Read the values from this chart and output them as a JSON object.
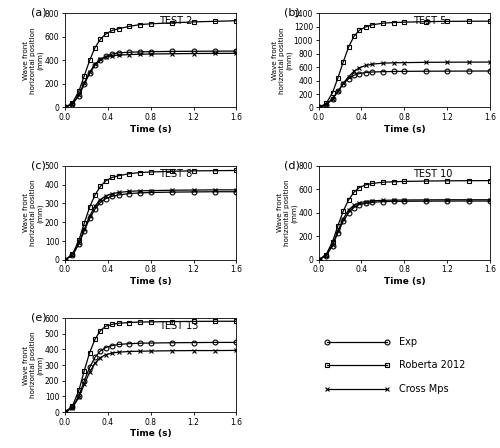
{
  "tests": [
    {
      "label": "TEST 2",
      "ylim": [
        0,
        800
      ],
      "yticks": [
        0,
        200,
        400,
        600,
        800
      ],
      "exp": [
        [
          0,
          0
        ],
        [
          0.07,
          30
        ],
        [
          0.13,
          100
        ],
        [
          0.18,
          200
        ],
        [
          0.23,
          290
        ],
        [
          0.28,
          360
        ],
        [
          0.33,
          400
        ],
        [
          0.38,
          435
        ],
        [
          0.44,
          455
        ],
        [
          0.5,
          465
        ],
        [
          0.6,
          470
        ],
        [
          0.7,
          473
        ],
        [
          0.8,
          475
        ],
        [
          1.0,
          477
        ],
        [
          1.2,
          478
        ],
        [
          1.4,
          479
        ],
        [
          1.6,
          480
        ]
      ],
      "roberta": [
        [
          0,
          0
        ],
        [
          0.07,
          40
        ],
        [
          0.13,
          140
        ],
        [
          0.18,
          270
        ],
        [
          0.23,
          400
        ],
        [
          0.28,
          510
        ],
        [
          0.33,
          580
        ],
        [
          0.38,
          625
        ],
        [
          0.44,
          655
        ],
        [
          0.5,
          670
        ],
        [
          0.6,
          690
        ],
        [
          0.7,
          705
        ],
        [
          0.8,
          712
        ],
        [
          1.0,
          720
        ],
        [
          1.2,
          728
        ],
        [
          1.4,
          733
        ],
        [
          1.6,
          738
        ]
      ],
      "cross": [
        [
          0,
          0
        ],
        [
          0.07,
          30
        ],
        [
          0.13,
          110
        ],
        [
          0.18,
          210
        ],
        [
          0.23,
          300
        ],
        [
          0.28,
          370
        ],
        [
          0.33,
          410
        ],
        [
          0.38,
          430
        ],
        [
          0.44,
          440
        ],
        [
          0.5,
          445
        ],
        [
          0.6,
          450
        ],
        [
          0.7,
          453
        ],
        [
          0.8,
          455
        ],
        [
          1.0,
          457
        ],
        [
          1.2,
          459
        ],
        [
          1.4,
          460
        ],
        [
          1.6,
          461
        ]
      ]
    },
    {
      "label": "TEST 5",
      "ylim": [
        0,
        1400
      ],
      "yticks": [
        0,
        200,
        400,
        600,
        800,
        1000,
        1200,
        1400
      ],
      "exp": [
        [
          0,
          0
        ],
        [
          0.07,
          40
        ],
        [
          0.13,
          130
        ],
        [
          0.18,
          240
        ],
        [
          0.23,
          350
        ],
        [
          0.28,
          430
        ],
        [
          0.33,
          480
        ],
        [
          0.38,
          505
        ],
        [
          0.44,
          520
        ],
        [
          0.5,
          528
        ],
        [
          0.6,
          533
        ],
        [
          0.7,
          536
        ],
        [
          0.8,
          538
        ],
        [
          1.0,
          540
        ],
        [
          1.2,
          541
        ],
        [
          1.4,
          542
        ],
        [
          1.6,
          543
        ]
      ],
      "roberta": [
        [
          0,
          0
        ],
        [
          0.07,
          60
        ],
        [
          0.13,
          220
        ],
        [
          0.18,
          440
        ],
        [
          0.23,
          680
        ],
        [
          0.28,
          900
        ],
        [
          0.33,
          1060
        ],
        [
          0.38,
          1150
        ],
        [
          0.44,
          1200
        ],
        [
          0.5,
          1230
        ],
        [
          0.6,
          1255
        ],
        [
          0.7,
          1265
        ],
        [
          0.8,
          1270
        ],
        [
          1.0,
          1278
        ],
        [
          1.2,
          1282
        ],
        [
          1.4,
          1284
        ],
        [
          1.6,
          1285
        ]
      ],
      "cross": [
        [
          0,
          0
        ],
        [
          0.07,
          40
        ],
        [
          0.13,
          130
        ],
        [
          0.18,
          240
        ],
        [
          0.23,
          360
        ],
        [
          0.28,
          460
        ],
        [
          0.33,
          540
        ],
        [
          0.38,
          590
        ],
        [
          0.44,
          625
        ],
        [
          0.5,
          645
        ],
        [
          0.6,
          660
        ],
        [
          0.7,
          665
        ],
        [
          0.8,
          668
        ],
        [
          1.0,
          672
        ],
        [
          1.2,
          674
        ],
        [
          1.4,
          675
        ],
        [
          1.6,
          676
        ]
      ]
    },
    {
      "label": "TEST 8",
      "ylim": [
        0,
        500
      ],
      "yticks": [
        0,
        100,
        200,
        300,
        400,
        500
      ],
      "exp": [
        [
          0,
          0
        ],
        [
          0.07,
          25
        ],
        [
          0.13,
          85
        ],
        [
          0.18,
          155
        ],
        [
          0.23,
          220
        ],
        [
          0.28,
          270
        ],
        [
          0.33,
          305
        ],
        [
          0.38,
          325
        ],
        [
          0.44,
          338
        ],
        [
          0.5,
          345
        ],
        [
          0.6,
          352
        ],
        [
          0.7,
          356
        ],
        [
          0.8,
          358
        ],
        [
          1.0,
          360
        ],
        [
          1.2,
          361
        ],
        [
          1.4,
          362
        ],
        [
          1.6,
          362
        ]
      ],
      "roberta": [
        [
          0,
          0
        ],
        [
          0.07,
          30
        ],
        [
          0.13,
          105
        ],
        [
          0.18,
          195
        ],
        [
          0.23,
          280
        ],
        [
          0.28,
          345
        ],
        [
          0.33,
          390
        ],
        [
          0.38,
          420
        ],
        [
          0.44,
          438
        ],
        [
          0.5,
          447
        ],
        [
          0.6,
          458
        ],
        [
          0.7,
          464
        ],
        [
          0.8,
          467
        ],
        [
          1.0,
          471
        ],
        [
          1.2,
          473
        ],
        [
          1.4,
          474
        ],
        [
          1.6,
          475
        ]
      ],
      "cross": [
        [
          0,
          0
        ],
        [
          0.07,
          25
        ],
        [
          0.13,
          88
        ],
        [
          0.18,
          163
        ],
        [
          0.23,
          232
        ],
        [
          0.28,
          286
        ],
        [
          0.33,
          320
        ],
        [
          0.38,
          340
        ],
        [
          0.44,
          352
        ],
        [
          0.5,
          358
        ],
        [
          0.6,
          364
        ],
        [
          0.7,
          367
        ],
        [
          0.8,
          368
        ],
        [
          1.0,
          370
        ],
        [
          1.2,
          371
        ],
        [
          1.4,
          372
        ],
        [
          1.6,
          372
        ]
      ]
    },
    {
      "label": "TEST 10",
      "ylim": [
        0,
        800
      ],
      "yticks": [
        0,
        200,
        400,
        600,
        800
      ],
      "exp": [
        [
          0,
          0
        ],
        [
          0.07,
          35
        ],
        [
          0.13,
          120
        ],
        [
          0.18,
          230
        ],
        [
          0.23,
          330
        ],
        [
          0.28,
          400
        ],
        [
          0.33,
          445
        ],
        [
          0.38,
          470
        ],
        [
          0.44,
          483
        ],
        [
          0.5,
          490
        ],
        [
          0.6,
          495
        ],
        [
          0.7,
          497
        ],
        [
          0.8,
          498
        ],
        [
          1.0,
          499
        ],
        [
          1.2,
          500
        ],
        [
          1.4,
          500
        ],
        [
          1.6,
          500
        ]
      ],
      "roberta": [
        [
          0,
          0
        ],
        [
          0.07,
          45
        ],
        [
          0.13,
          155
        ],
        [
          0.18,
          290
        ],
        [
          0.23,
          415
        ],
        [
          0.28,
          510
        ],
        [
          0.33,
          575
        ],
        [
          0.38,
          615
        ],
        [
          0.44,
          638
        ],
        [
          0.5,
          650
        ],
        [
          0.6,
          660
        ],
        [
          0.7,
          664
        ],
        [
          0.8,
          667
        ],
        [
          1.0,
          670
        ],
        [
          1.2,
          672
        ],
        [
          1.4,
          673
        ],
        [
          1.6,
          674
        ]
      ],
      "cross": [
        [
          0,
          0
        ],
        [
          0.07,
          38
        ],
        [
          0.13,
          130
        ],
        [
          0.18,
          245
        ],
        [
          0.23,
          350
        ],
        [
          0.28,
          425
        ],
        [
          0.33,
          465
        ],
        [
          0.38,
          486
        ],
        [
          0.44,
          496
        ],
        [
          0.5,
          502
        ],
        [
          0.6,
          506
        ],
        [
          0.7,
          508
        ],
        [
          0.8,
          509
        ],
        [
          1.0,
          510
        ],
        [
          1.2,
          511
        ],
        [
          1.4,
          511
        ],
        [
          1.6,
          511
        ]
      ]
    },
    {
      "label": "TEST 13",
      "ylim": [
        0,
        600
      ],
      "yticks": [
        0,
        100,
        200,
        300,
        400,
        500,
        600
      ],
      "exp": [
        [
          0,
          0
        ],
        [
          0.07,
          30
        ],
        [
          0.13,
          105
        ],
        [
          0.18,
          200
        ],
        [
          0.23,
          285
        ],
        [
          0.28,
          350
        ],
        [
          0.33,
          390
        ],
        [
          0.38,
          412
        ],
        [
          0.44,
          425
        ],
        [
          0.5,
          432
        ],
        [
          0.6,
          437
        ],
        [
          0.7,
          440
        ],
        [
          0.8,
          441
        ],
        [
          1.0,
          443
        ],
        [
          1.2,
          444
        ],
        [
          1.4,
          445
        ],
        [
          1.6,
          445
        ]
      ],
      "roberta": [
        [
          0,
          0
        ],
        [
          0.07,
          40
        ],
        [
          0.13,
          140
        ],
        [
          0.18,
          265
        ],
        [
          0.23,
          380
        ],
        [
          0.28,
          465
        ],
        [
          0.33,
          520
        ],
        [
          0.38,
          548
        ],
        [
          0.44,
          560
        ],
        [
          0.5,
          567
        ],
        [
          0.6,
          572
        ],
        [
          0.7,
          575
        ],
        [
          0.8,
          576
        ],
        [
          1.0,
          578
        ],
        [
          1.2,
          579
        ],
        [
          1.4,
          580
        ],
        [
          1.6,
          580
        ]
      ],
      "cross": [
        [
          0,
          0
        ],
        [
          0.07,
          28
        ],
        [
          0.13,
          95
        ],
        [
          0.18,
          178
        ],
        [
          0.23,
          255
        ],
        [
          0.28,
          312
        ],
        [
          0.33,
          348
        ],
        [
          0.38,
          367
        ],
        [
          0.44,
          377
        ],
        [
          0.5,
          383
        ],
        [
          0.6,
          387
        ],
        [
          0.7,
          389
        ],
        [
          0.8,
          390
        ],
        [
          1.0,
          392
        ],
        [
          1.2,
          393
        ],
        [
          1.4,
          393
        ],
        [
          1.6,
          394
        ]
      ]
    }
  ],
  "panel_labels": [
    "(a)",
    "(b)",
    "(c)",
    "(d)",
    "(e)"
  ],
  "xlabel": "Time (s)",
  "ylabel": "Wave front\nhorizontal position\n(mm)",
  "legend_labels": [
    "Exp",
    "Roberta 2012",
    "Cross Mps"
  ],
  "exp_marker": "o",
  "roberta_marker": "s",
  "cross_marker": "x",
  "line_color": "black",
  "xticks": [
    0,
    0.4,
    0.8,
    1.2,
    1.6
  ],
  "xlim": [
    0,
    1.6
  ]
}
